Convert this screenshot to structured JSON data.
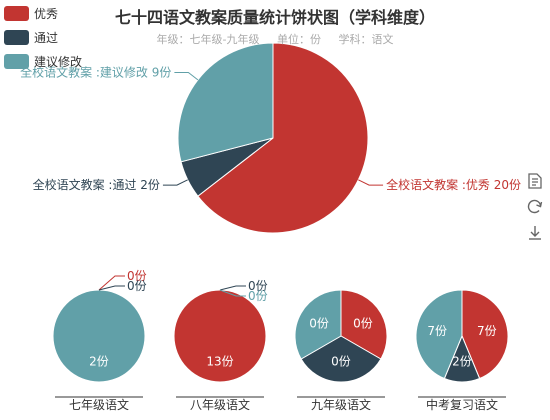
{
  "title": "七十四语文教案质量统计饼状图（学科维度）",
  "subtitle": "年级：七年级-九年级     单位：份     学科：语文",
  "legend": [
    {
      "name": "优秀",
      "color": "#c23531"
    },
    {
      "name": "通过",
      "color": "#2f4554"
    },
    {
      "name": "建议修改",
      "color": "#61a0a8"
    }
  ],
  "toolbox": [
    "data-view-icon",
    "refresh-icon",
    "download-icon"
  ],
  "chart_data": [
    {
      "type": "pie",
      "name": "全校",
      "categories": [
        "优秀",
        "通过",
        "建议修改"
      ],
      "values": [
        20,
        2,
        9
      ],
      "labels": [
        "全校语文教案 :优秀 20份",
        "全校语文教案 :通过 2份",
        "全校语文教案 :建议修改 9份"
      ]
    },
    {
      "type": "pie",
      "name": "七年级语文",
      "categories": [
        "优秀",
        "通过",
        "建议修改"
      ],
      "values": [
        0,
        0,
        2
      ],
      "labels": [
        "0份",
        "0份",
        "2份"
      ]
    },
    {
      "type": "pie",
      "name": "八年级语文",
      "categories": [
        "优秀",
        "通过",
        "建议修改"
      ],
      "values": [
        13,
        0,
        0
      ],
      "labels": [
        "13份",
        "0份",
        "0份"
      ]
    },
    {
      "type": "pie",
      "name": "九年级语文",
      "categories": [
        "优秀",
        "通过",
        "建议修改"
      ],
      "values": [
        0,
        0,
        0
      ],
      "labels": [
        "0份",
        "0份",
        "0份"
      ]
    },
    {
      "type": "pie",
      "name": "中考复习语文",
      "categories": [
        "优秀",
        "通过",
        "建议修改"
      ],
      "values": [
        7,
        2,
        7
      ],
      "labels": [
        "7份",
        "2份",
        "7份"
      ]
    }
  ]
}
